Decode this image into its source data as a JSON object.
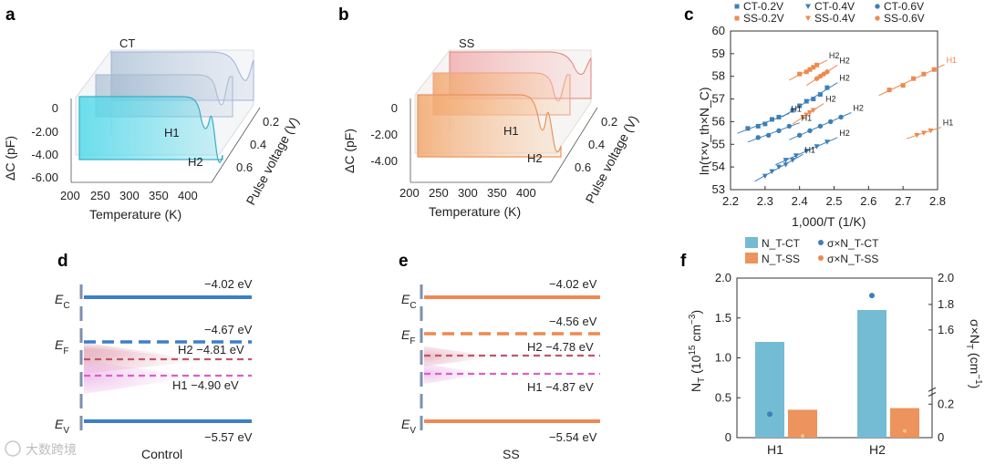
{
  "panel_labels": {
    "a": "a",
    "b": "b",
    "c": "c",
    "d": "d",
    "e": "e",
    "f": "f"
  },
  "colors": {
    "ct": "#3d7fb8",
    "ss": "#ee8a4f",
    "h2_level": "#c0566b",
    "h1_level": "#d860c8",
    "ct_surface": "#58d8e8",
    "ss_surface": "#f3b07a",
    "bar_ct": "#74bcd3",
    "bar_ss": "#ec935e"
  },
  "panel_a": {
    "tag": "CT",
    "ylabel": "ΔC (pF)",
    "xlabel": "Temperature (K)",
    "zlabel": "Pulse voltage (V)",
    "y_ticks": [
      "0",
      "-2.00",
      "-4.00",
      "-6.00"
    ],
    "x_ticks": [
      "200",
      "250",
      "300",
      "350",
      "400"
    ],
    "z_ticks": [
      "0.2",
      "0.4",
      "0.6"
    ],
    "peak_labels": [
      "H1",
      "H2"
    ]
  },
  "panel_b": {
    "tag": "SS",
    "ylabel": "ΔC (pF)",
    "xlabel": "Temperature (K)",
    "zlabel": "Pulse voltage (V)",
    "y_ticks": [
      "0",
      "-2.00",
      "-4.00"
    ],
    "x_ticks": [
      "200",
      "250",
      "300",
      "350",
      "400"
    ],
    "z_ticks": [
      "0.2",
      "0.4",
      "0.6"
    ],
    "peak_labels": [
      "H1",
      "H2"
    ]
  },
  "panel_d": {
    "title": "Control",
    "levels": [
      {
        "label": "E_C",
        "value": "−4.02 eV"
      },
      {
        "label": "E_F",
        "value": "−4.67 eV"
      },
      {
        "label": "H2",
        "value": "H2 −4.81 eV"
      },
      {
        "label": "H1",
        "value": "H1 −4.90 eV"
      },
      {
        "label": "E_V",
        "value": "−5.57 eV"
      }
    ],
    "ec_sym": "E",
    "ec_sub": "C",
    "ef_sym": "E",
    "ef_sub": "F",
    "ev_sym": "E",
    "ev_sub": "V"
  },
  "panel_e": {
    "title": "SS",
    "levels": [
      {
        "label": "E_C",
        "value": "−4.02 eV"
      },
      {
        "label": "E_F",
        "value": "−4.56 eV"
      },
      {
        "label": "H2",
        "value": "H2 −4.78 eV"
      },
      {
        "label": "H1",
        "value": "H1 −4.87 eV"
      },
      {
        "label": "E_V",
        "value": "−5.54 eV"
      }
    ],
    "ec_sym": "E",
    "ec_sub": "C",
    "ef_sym": "E",
    "ef_sub": "F",
    "ev_sym": "E",
    "ev_sub": "V"
  },
  "watermark": "大数跨境",
  "chart_data": [
    {
      "id": "c",
      "type": "scatter",
      "xlabel": "1,000/T (1/K)",
      "ylabel": "ln(τ×v_th×N_C)",
      "xlim": [
        2.2,
        2.8
      ],
      "ylim": [
        53,
        60
      ],
      "x_ticks": [
        "2.2",
        "2.3",
        "2.4",
        "2.5",
        "2.6",
        "2.7",
        "2.8"
      ],
      "y_ticks": [
        "53",
        "54",
        "55",
        "56",
        "57",
        "58",
        "59",
        "60"
      ],
      "legend": [
        "CT-0.2V",
        "CT-0.4V",
        "CT-0.6V",
        "SS-0.2V",
        "SS-0.4V",
        "SS-0.6V"
      ],
      "series": [
        {
          "name": "CT-0.2V",
          "group": "CT",
          "marker": "square",
          "segments": [
            {
              "label": "H2",
              "x": [
                2.38,
                2.4,
                2.42,
                2.44,
                2.46,
                2.48
              ],
              "y": [
                56.5,
                56.7,
                56.9,
                57.0,
                57.2,
                57.5
              ]
            },
            {
              "label": "H1",
              "x": [
                2.25,
                2.28,
                2.3,
                2.32,
                2.34
              ],
              "y": [
                55.7,
                55.8,
                55.9,
                56.1,
                56.2
              ]
            }
          ]
        },
        {
          "name": "CT-0.4V",
          "group": "CT",
          "marker": "triangle",
          "segments": [
            {
              "label": "H2",
              "x": [
                2.36,
                2.39,
                2.42,
                2.45,
                2.48
              ],
              "y": [
                54.3,
                54.5,
                54.7,
                54.9,
                55.1
              ]
            },
            {
              "label": "H1",
              "x": [
                2.3,
                2.32,
                2.34,
                2.36,
                2.38
              ],
              "y": [
                53.6,
                53.8,
                54.0,
                54.1,
                54.3
              ]
            }
          ]
        },
        {
          "name": "CT-0.6V",
          "group": "CT",
          "marker": "circle",
          "segments": [
            {
              "label": "H2",
              "x": [
                2.4,
                2.43,
                2.46,
                2.49,
                2.52
              ],
              "y": [
                55.4,
                55.6,
                55.8,
                56.0,
                56.2
              ]
            },
            {
              "label": "H1",
              "x": [
                2.28,
                2.31,
                2.34,
                2.37
              ],
              "y": [
                55.3,
                55.4,
                55.6,
                55.8
              ]
            }
          ]
        },
        {
          "name": "SS-0.2V",
          "group": "SS",
          "marker": "square",
          "segments": [
            {
              "label": "H2",
              "x": [
                2.4,
                2.42,
                2.43,
                2.44,
                2.45
              ],
              "y": [
                58.1,
                58.2,
                58.3,
                58.4,
                58.5
              ]
            },
            {
              "label": "H1",
              "x": [
                2.66,
                2.7,
                2.73,
                2.76,
                2.79
              ],
              "y": [
                57.4,
                57.6,
                57.9,
                58.1,
                58.3
              ]
            }
          ]
        },
        {
          "name": "SS-0.4V",
          "group": "SS",
          "marker": "triangle",
          "segments": [
            {
              "label": "H2",
              "x": [
                2.41,
                2.42,
                2.43,
                2.44
              ],
              "y": [
                56.2,
                56.3,
                56.4,
                56.5
              ]
            },
            {
              "label": "H1",
              "x": [
                2.74,
                2.76,
                2.78
              ],
              "y": [
                55.4,
                55.5,
                55.6
              ]
            }
          ]
        },
        {
          "name": "SS-0.6V",
          "group": "SS",
          "marker": "circle",
          "segments": [
            {
              "label": "H2",
              "x": [
                2.45,
                2.46,
                2.47,
                2.48
              ],
              "y": [
                57.9,
                58.0,
                58.1,
                58.2
              ]
            }
          ]
        }
      ]
    },
    {
      "id": "f",
      "type": "bar",
      "categories": [
        "H1",
        "H2"
      ],
      "left_axis": {
        "label": "N_T (10^15 cm^-3)",
        "ylim": [
          0,
          2.0
        ],
        "ticks": [
          "0",
          "0.5",
          "1.0",
          "1.5",
          "2.0"
        ]
      },
      "right_axis": {
        "label": "σ×N_T (cm^-1)",
        "ticks": [
          "0",
          "0.2",
          "1.6",
          "1.8",
          "2.0"
        ]
      },
      "legend": [
        "N_T-CT",
        "N_T-SS",
        "σ×N_T-CT",
        "σ×N_T-SS"
      ],
      "series": [
        {
          "name": "N_T-CT",
          "values": [
            1.2,
            1.6
          ]
        },
        {
          "name": "N_T-SS",
          "values": [
            0.35,
            0.37
          ]
        },
        {
          "name": "σ×N_T-CT",
          "values": [
            0.14,
            1.87
          ]
        },
        {
          "name": "σ×N_T-SS",
          "values": [
            0.01,
            0.04
          ]
        }
      ]
    }
  ]
}
